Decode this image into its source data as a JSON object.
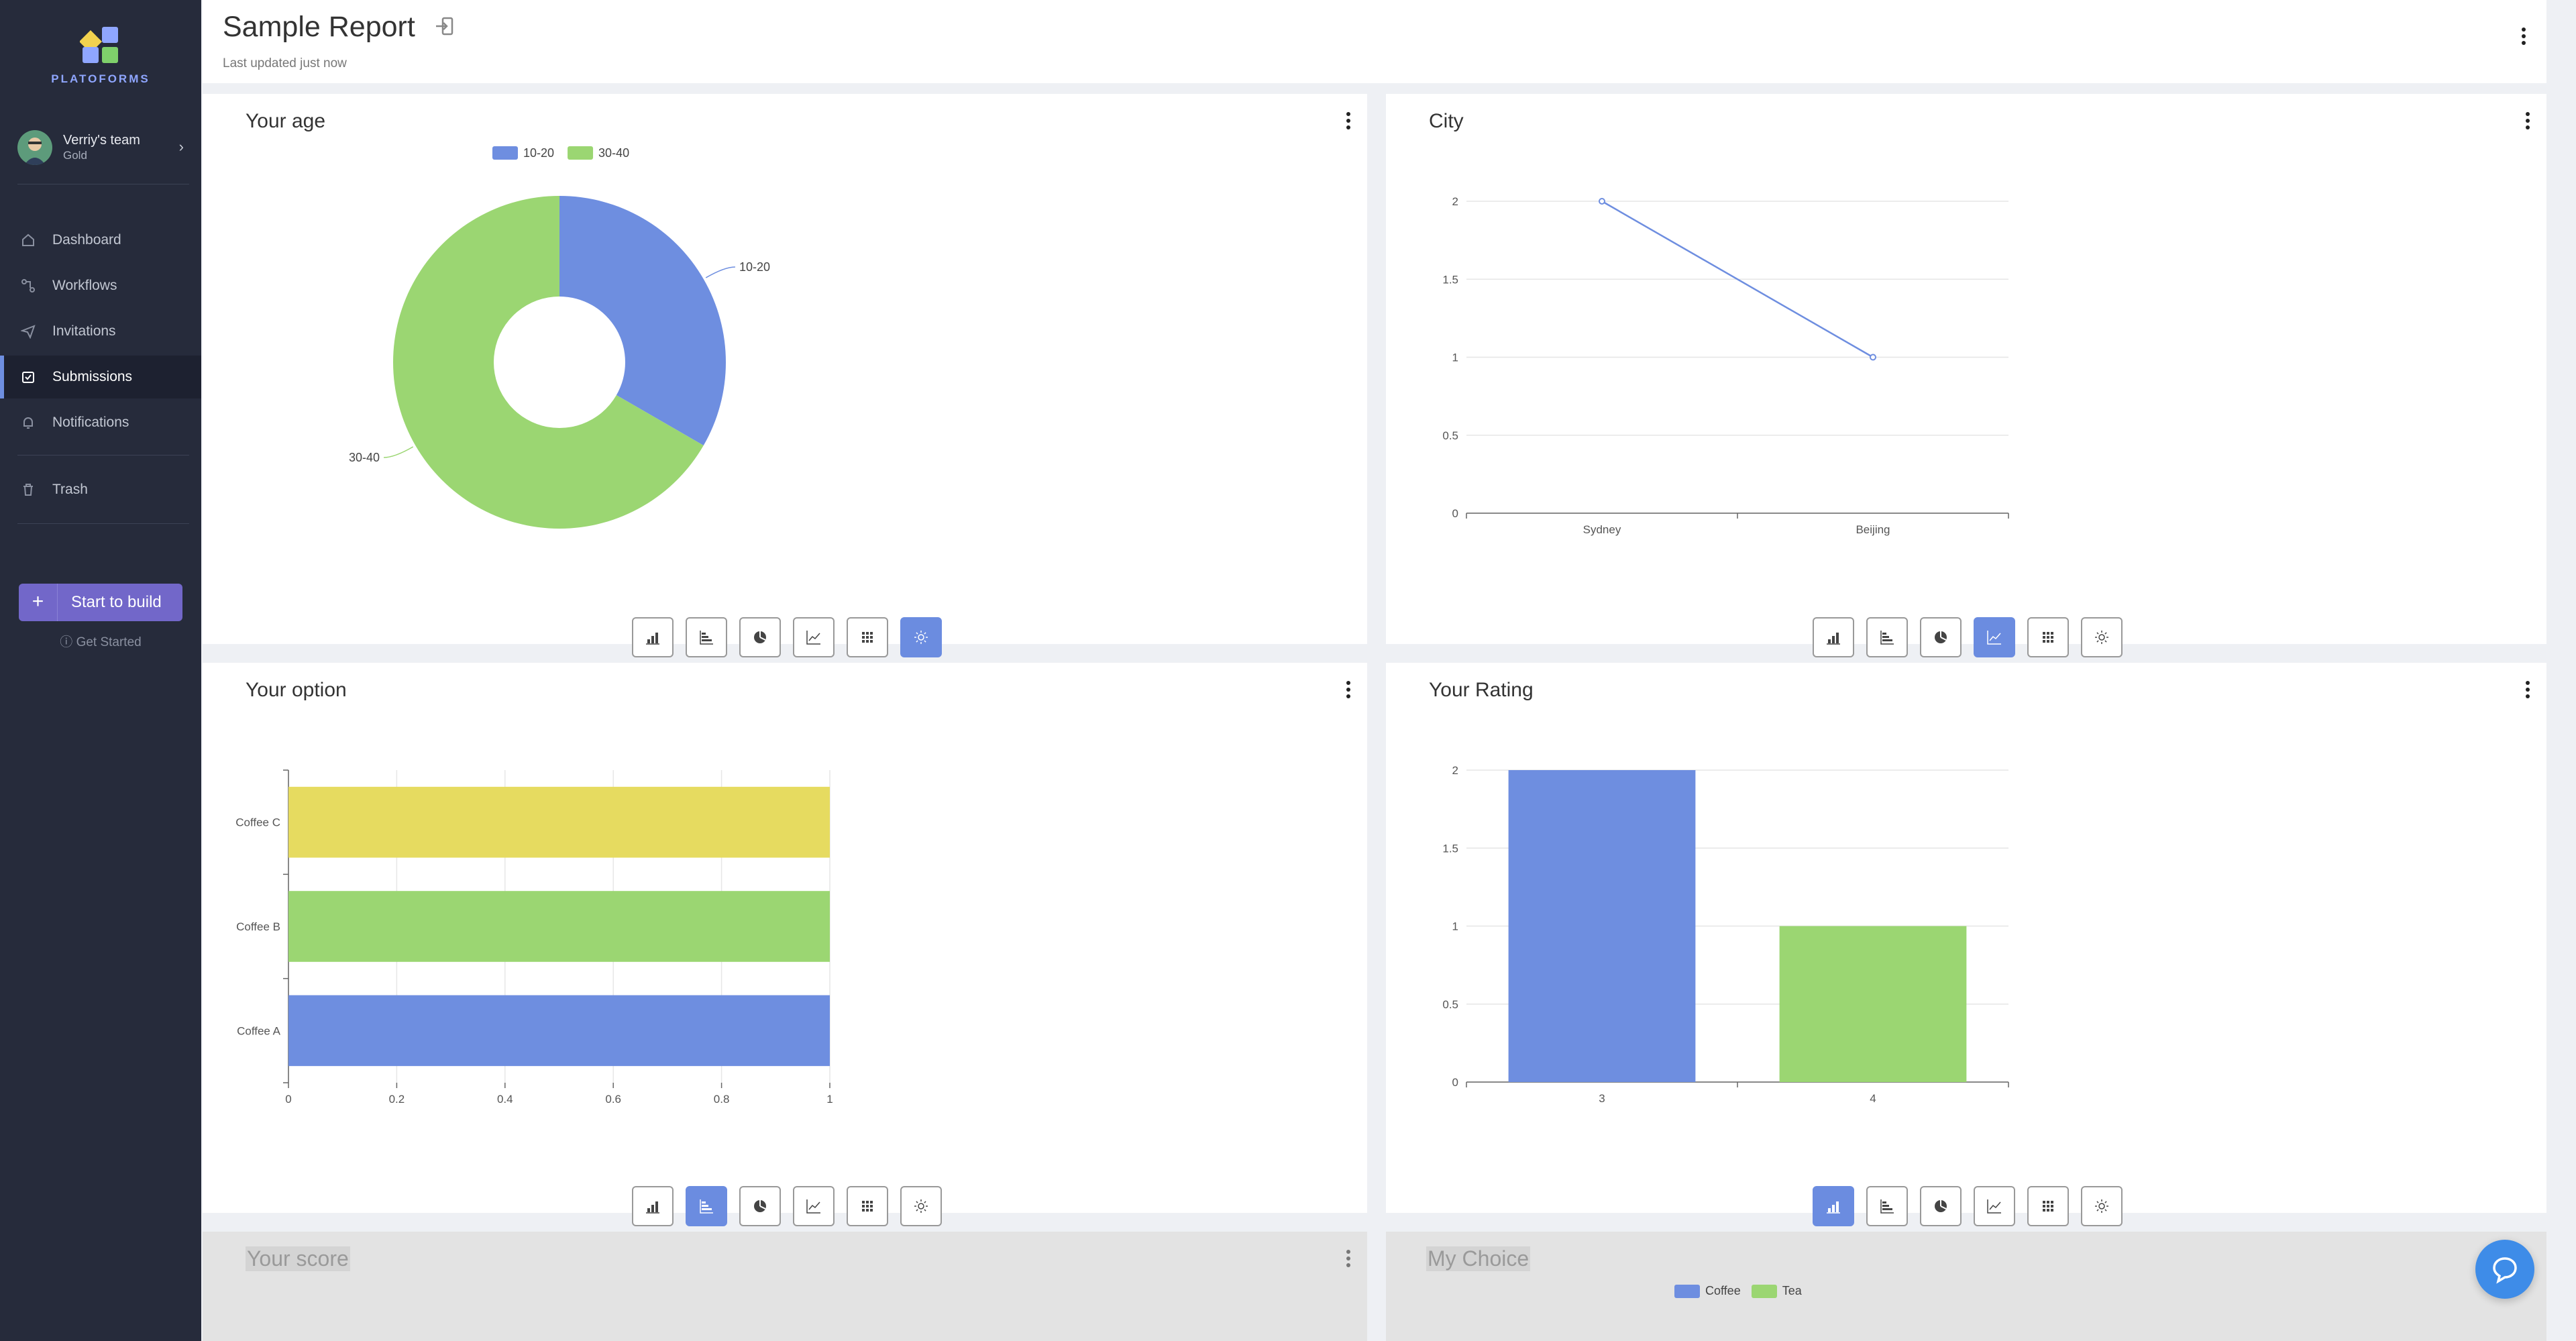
{
  "colors": {
    "blue": "#6e8ee0",
    "green": "#9bd672",
    "yellow": "#e6db60",
    "sidebar": "#262b3b",
    "accent": "#7267c9"
  },
  "sidebar": {
    "logo_text": "PLATOFORMS",
    "team": {
      "name": "Verriy's team",
      "plan": "Gold"
    },
    "nav": [
      {
        "label": "Dashboard",
        "icon": "home-icon",
        "active": false
      },
      {
        "label": "Workflows",
        "icon": "workflow-icon",
        "active": false
      },
      {
        "label": "Invitations",
        "icon": "send-icon",
        "active": false
      },
      {
        "label": "Submissions",
        "icon": "inbox-icon",
        "active": true
      },
      {
        "label": "Notifications",
        "icon": "bell-icon",
        "active": false
      },
      {
        "label": "Trash",
        "icon": "trash-icon",
        "active": false
      }
    ],
    "start_button": "Start to build",
    "get_started": "Get Started"
  },
  "header": {
    "title": "Sample Report",
    "subtitle": "Last updated just now"
  },
  "cards": {
    "age": {
      "title": "Your age",
      "active_view": "doughnut"
    },
    "city": {
      "title": "City",
      "active_view": "line"
    },
    "option": {
      "title": "Your option",
      "active_view": "horizontal-bar"
    },
    "rating": {
      "title": "Your Rating",
      "active_view": "bar"
    },
    "score": {
      "title": "Your score"
    },
    "choice": {
      "title": "My Choice",
      "legend": [
        "Coffee",
        "Tea"
      ]
    }
  },
  "toolbar_icons": [
    "bar-chart-icon",
    "horizontal-bar-icon",
    "pie-chart-icon",
    "line-chart-icon",
    "table-grid-icon",
    "sun-icon"
  ],
  "chart_data": [
    {
      "type": "pie",
      "title": "Your age",
      "categories": [
        "10-20",
        "30-40"
      ],
      "values": [
        1,
        2
      ],
      "legend": "top"
    },
    {
      "type": "line",
      "title": "City",
      "categories": [
        "Sydney",
        "Beijing"
      ],
      "values": [
        2,
        1
      ],
      "ylim": [
        0,
        2
      ],
      "yticks": [
        "0",
        "0.5",
        "1",
        "1.5",
        "2"
      ],
      "grid": true
    },
    {
      "type": "bar",
      "orientation": "horizontal",
      "title": "Your option",
      "categories": [
        "Coffee A",
        "Coffee B",
        "Coffee C"
      ],
      "values": [
        1,
        1,
        1
      ],
      "xlim": [
        0,
        1
      ],
      "xticks": [
        "0",
        "0.2",
        "0.4",
        "0.6",
        "0.8",
        "1"
      ],
      "grid": true
    },
    {
      "type": "bar",
      "title": "Your Rating",
      "categories": [
        "3",
        "4"
      ],
      "values": [
        2,
        1
      ],
      "ylim": [
        0,
        2
      ],
      "yticks": [
        "0",
        "0.5",
        "1",
        "1.5",
        "2"
      ],
      "grid": true
    }
  ]
}
